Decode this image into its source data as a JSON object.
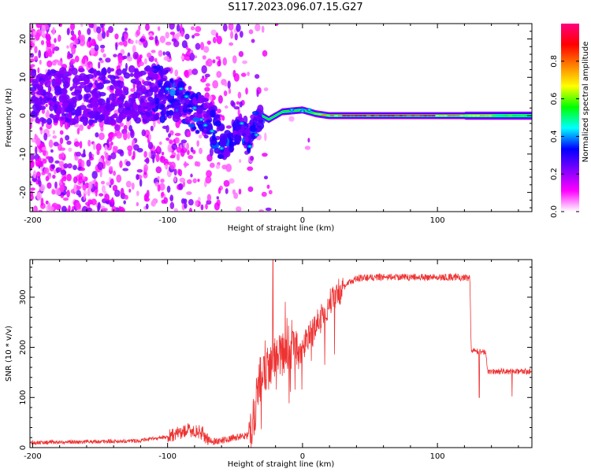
{
  "title": "S117.2023.096.07.15.G27",
  "chart_data": [
    {
      "type": "heatmap",
      "xlabel": "Height of straight line (km)",
      "ylabel": "Frequency (Hz)",
      "xlim": [
        -202,
        170
      ],
      "ylim": [
        -25,
        24
      ],
      "xticks": [
        -200,
        -100,
        0,
        100
      ],
      "yticks": [
        -20,
        -10,
        0,
        10,
        20
      ],
      "ridge": [
        {
          "x": -200,
          "y": 5
        },
        {
          "x": -150,
          "y": 5
        },
        {
          "x": -110,
          "y": 6
        },
        {
          "x": -90,
          "y": 4
        },
        {
          "x": -75,
          "y": 0
        },
        {
          "x": -65,
          "y": -3
        },
        {
          "x": -58,
          "y": -8
        },
        {
          "x": -52,
          "y": -6
        },
        {
          "x": -46,
          "y": -3
        },
        {
          "x": -40,
          "y": -7
        },
        {
          "x": -35,
          "y": -2
        },
        {
          "x": -30,
          "y": 0
        },
        {
          "x": -25,
          "y": -1
        },
        {
          "x": -15,
          "y": 1
        },
        {
          "x": 0,
          "y": 1.5
        },
        {
          "x": 10,
          "y": 0.5
        },
        {
          "x": 20,
          "y": 0
        },
        {
          "x": 100,
          "y": 0
        },
        {
          "x": 170,
          "y": 0
        }
      ],
      "colorbar": {
        "label": "Normalized spectral amplitude",
        "range": [
          0,
          1
        ],
        "ticks": [
          0.0,
          0.2,
          0.4,
          0.6,
          0.8
        ],
        "tick_labels": [
          "0.0",
          "0.2",
          "0.4",
          "0.6",
          "0.8"
        ],
        "colors": [
          "#ffffff",
          "#ff00ff",
          "#8000ff",
          "#0000ff",
          "#00ffff",
          "#00ff00",
          "#ffff00",
          "#ff8000",
          "#ff0000",
          "#ff0080"
        ]
      },
      "grid": false
    },
    {
      "type": "line",
      "xlabel": "Height of straight line (km)",
      "ylabel": "SNR (10 * v/v)",
      "xlim": [
        -202,
        170
      ],
      "ylim": [
        0,
        375
      ],
      "xticks": [
        -200,
        -100,
        0,
        100
      ],
      "yticks": [
        0,
        100,
        200,
        300
      ],
      "color": "#ee3333",
      "envelope": [
        {
          "x": -202,
          "y": 10
        },
        {
          "x": -150,
          "y": 12
        },
        {
          "x": -120,
          "y": 14
        },
        {
          "x": -100,
          "y": 22
        },
        {
          "x": -85,
          "y": 35
        },
        {
          "x": -75,
          "y": 30
        },
        {
          "x": -68,
          "y": 12
        },
        {
          "x": -60,
          "y": 14
        },
        {
          "x": -50,
          "y": 20
        },
        {
          "x": -40,
          "y": 25
        },
        {
          "x": -36,
          "y": 60
        },
        {
          "x": -32,
          "y": 140
        },
        {
          "x": -25,
          "y": 160
        },
        {
          "x": -20,
          "y": 175
        },
        {
          "x": -10,
          "y": 200
        },
        {
          "x": 0,
          "y": 200
        },
        {
          "x": 10,
          "y": 240
        },
        {
          "x": 20,
          "y": 290
        },
        {
          "x": 30,
          "y": 320
        },
        {
          "x": 40,
          "y": 338
        },
        {
          "x": 60,
          "y": 340
        },
        {
          "x": 90,
          "y": 340
        },
        {
          "x": 115,
          "y": 340
        },
        {
          "x": 124,
          "y": 338
        },
        {
          "x": 125,
          "y": 195
        },
        {
          "x": 136,
          "y": 190
        },
        {
          "x": 137,
          "y": 152
        },
        {
          "x": 170,
          "y": 152
        }
      ],
      "peak": {
        "x": -22,
        "y": 375
      },
      "grid": false
    }
  ]
}
